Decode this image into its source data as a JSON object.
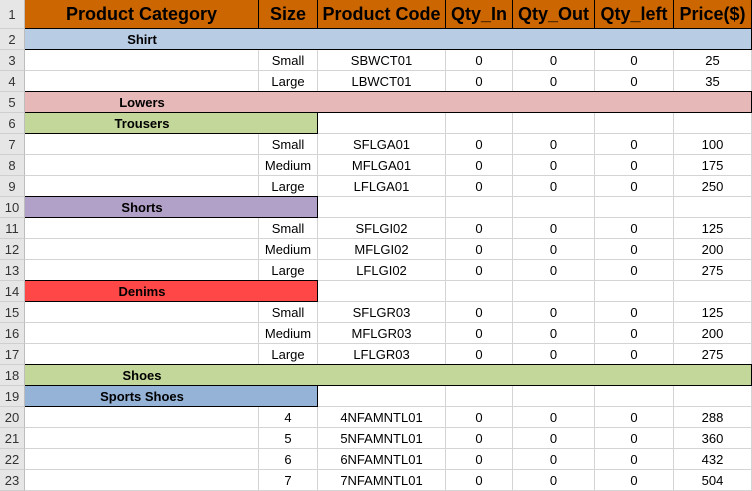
{
  "headers": [
    "Product Category",
    "Size",
    "Product Code",
    "Qty_In",
    "Qty_Out",
    "Qty_left",
    "Price($)"
  ],
  "colors": {
    "header": "#cc6600"
  },
  "rows": [
    {
      "n": "1",
      "type": "header"
    },
    {
      "n": "2",
      "type": "band",
      "label": "Shirt",
      "span": "all",
      "color": "#b8cce4"
    },
    {
      "n": "3",
      "type": "data",
      "cells": [
        "",
        "Small",
        "SBWCT01",
        "0",
        "0",
        "0",
        "25"
      ]
    },
    {
      "n": "4",
      "type": "data",
      "cells": [
        "",
        "Large",
        "LBWCT01",
        "0",
        "0",
        "0",
        "35"
      ]
    },
    {
      "n": "5",
      "type": "band",
      "label": "Lowers",
      "span": "all",
      "color": "#e6b8b7"
    },
    {
      "n": "6",
      "type": "band",
      "label": "Trousers",
      "span": "ab",
      "color": "#c4d79b"
    },
    {
      "n": "7",
      "type": "data",
      "cells": [
        "",
        "Small",
        "SFLGA01",
        "0",
        "0",
        "0",
        "100"
      ]
    },
    {
      "n": "8",
      "type": "data",
      "cells": [
        "",
        "Medium",
        "MFLGA01",
        "0",
        "0",
        "0",
        "175"
      ]
    },
    {
      "n": "9",
      "type": "data",
      "cells": [
        "",
        "Large",
        "LFLGA01",
        "0",
        "0",
        "0",
        "250"
      ]
    },
    {
      "n": "10",
      "type": "band",
      "label": "Shorts",
      "span": "ab",
      "color": "#b1a0c7"
    },
    {
      "n": "11",
      "type": "data",
      "cells": [
        "",
        "Small",
        "SFLGI02",
        "0",
        "0",
        "0",
        "125"
      ]
    },
    {
      "n": "12",
      "type": "data",
      "cells": [
        "",
        "Medium",
        "MFLGI02",
        "0",
        "0",
        "0",
        "200"
      ]
    },
    {
      "n": "13",
      "type": "data",
      "cells": [
        "",
        "Large",
        "LFLGI02",
        "0",
        "0",
        "0",
        "275"
      ]
    },
    {
      "n": "14",
      "type": "band",
      "label": "Denims",
      "span": "ab",
      "color": "#ff4747"
    },
    {
      "n": "15",
      "type": "data",
      "cells": [
        "",
        "Small",
        "SFLGR03",
        "0",
        "0",
        "0",
        "125"
      ]
    },
    {
      "n": "16",
      "type": "data",
      "cells": [
        "",
        "Medium",
        "MFLGR03",
        "0",
        "0",
        "0",
        "200"
      ]
    },
    {
      "n": "17",
      "type": "data",
      "cells": [
        "",
        "Large",
        "LFLGR03",
        "0",
        "0",
        "0",
        "275"
      ]
    },
    {
      "n": "18",
      "type": "band",
      "label": "Shoes",
      "span": "all",
      "color": "#c4d79b"
    },
    {
      "n": "19",
      "type": "band",
      "label": "Sports Shoes",
      "span": "ab",
      "color": "#95b3d7"
    },
    {
      "n": "20",
      "type": "data",
      "cells": [
        "",
        "4",
        "4NFAMNTL01",
        "0",
        "0",
        "0",
        "288"
      ]
    },
    {
      "n": "21",
      "type": "data",
      "cells": [
        "",
        "5",
        "5NFAMNTL01",
        "0",
        "0",
        "0",
        "360"
      ]
    },
    {
      "n": "22",
      "type": "data",
      "cells": [
        "",
        "6",
        "6NFAMNTL01",
        "0",
        "0",
        "0",
        "432"
      ]
    },
    {
      "n": "23",
      "type": "data",
      "cells": [
        "",
        "7",
        "7NFAMNTL01",
        "0",
        "0",
        "0",
        "504"
      ]
    }
  ]
}
